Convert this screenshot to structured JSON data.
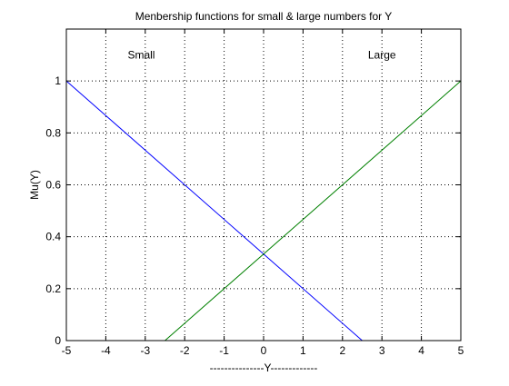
{
  "chart_data": {
    "type": "line",
    "title": "Menbership functions for small & large numbers for Y",
    "xlabel": "---------------Y-------------",
    "ylabel": "Mu(Y)",
    "xlim": [
      -5,
      5
    ],
    "ylim": [
      0,
      1.2
    ],
    "xticks": [
      -5,
      -4,
      -3,
      -2,
      -1,
      0,
      1,
      2,
      3,
      4,
      5
    ],
    "xtick_labels": [
      "-5",
      "-4",
      "-3",
      "-2",
      "-1",
      "0",
      "1",
      "2",
      "3",
      "4",
      "5"
    ],
    "yticks": [
      0,
      0.2,
      0.4,
      0.6,
      0.8,
      1
    ],
    "ytick_labels": [
      "0",
      "0.2",
      "0.4",
      "0.6",
      "0.8",
      "1"
    ],
    "grid": true,
    "grid_style": "dotted",
    "series": [
      {
        "name": "Small",
        "color": "#0000ff",
        "x": [
          -5,
          2.5
        ],
        "y": [
          1,
          0
        ]
      },
      {
        "name": "Large",
        "color": "#008000",
        "x": [
          -2.5,
          5
        ],
        "y": [
          0,
          1
        ]
      }
    ],
    "annotations": [
      {
        "text": "Small",
        "x": -3.1,
        "y": 1.1
      },
      {
        "text": "Large",
        "x": 3.0,
        "y": 1.1
      }
    ]
  }
}
